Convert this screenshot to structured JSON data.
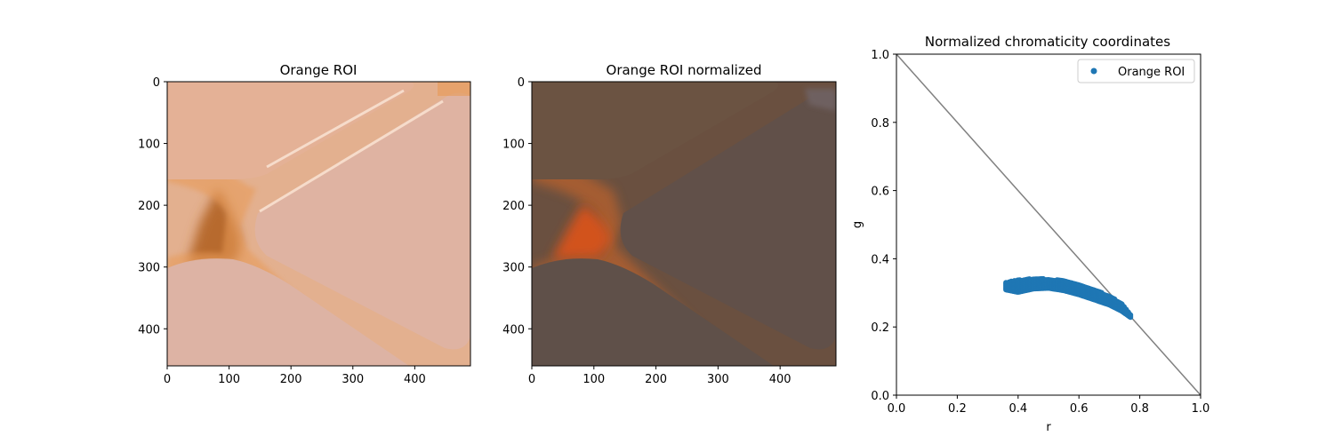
{
  "chart_data": [
    {
      "type": "image",
      "title": "Orange ROI",
      "xlim": [
        0,
        490
      ],
      "ylim": [
        460,
        0
      ],
      "xticks": [
        0,
        100,
        200,
        300,
        400
      ],
      "yticks": [
        0,
        100,
        200,
        300,
        400
      ],
      "tick_labels_x": [
        "0",
        "100",
        "200",
        "300",
        "400"
      ],
      "tick_labels_y": [
        "0",
        "100",
        "200",
        "300",
        "400"
      ],
      "colors": {
        "background": "#e3b08f",
        "upper_key": "#e4b196",
        "lower_right_key": "#dfb3a2",
        "lower_left_key": "#ddb3a4",
        "groove": "#e89a55",
        "groove_shadow": "#b76a2e",
        "highlight": "#f6dccb"
      }
    },
    {
      "type": "image",
      "title": "Orange ROI normalized",
      "xlim": [
        0,
        490
      ],
      "ylim": [
        460,
        0
      ],
      "xticks": [
        0,
        100,
        200,
        300,
        400
      ],
      "yticks": [
        0,
        100,
        200,
        300,
        400
      ],
      "tick_labels_x": [
        "0",
        "100",
        "200",
        "300",
        "400"
      ],
      "tick_labels_y": [
        "0",
        "100",
        "200",
        "300",
        "400"
      ],
      "colors": {
        "background": "#6a5040",
        "upper_key": "#6b5342",
        "lower_right_key": "#615049",
        "lower_left_key": "#5f5049",
        "groove": "#b4612e",
        "groove_shadow": "#d2521b",
        "highlight": "#6e6060"
      }
    },
    {
      "type": "scatter",
      "title": "Normalized chromaticity coordinates",
      "xlabel": "r",
      "ylabel": "g",
      "xlim": [
        0,
        1
      ],
      "ylim": [
        0,
        1
      ],
      "xticks": [
        0,
        0.2,
        0.4,
        0.6,
        0.8,
        1.0
      ],
      "yticks": [
        0,
        0.2,
        0.4,
        0.6,
        0.8,
        1.0
      ],
      "tick_labels_x": [
        "0.0",
        "0.2",
        "0.4",
        "0.6",
        "0.8",
        "1.0"
      ],
      "tick_labels_y": [
        "0.0",
        "0.2",
        "0.4",
        "0.6",
        "0.8",
        "1.0"
      ],
      "grid": false,
      "legend_position": "upper-right",
      "line": {
        "x": [
          0,
          1
        ],
        "y": [
          1,
          0
        ],
        "color": "#808080"
      },
      "series": [
        {
          "name": "Orange ROI",
          "color": "#1f77b4",
          "band_upper": {
            "x": [
              0.36,
              0.4,
              0.45,
              0.5,
              0.55,
              0.6,
              0.65,
              0.7,
              0.74,
              0.77
            ],
            "y": [
              0.331,
              0.338,
              0.342,
              0.341,
              0.336,
              0.326,
              0.31,
              0.291,
              0.27,
              0.235
            ]
          },
          "band_lower": {
            "x": [
              0.36,
              0.4,
              0.45,
              0.5,
              0.55,
              0.6,
              0.65,
              0.7,
              0.74,
              0.77
            ],
            "y": [
              0.309,
              0.302,
              0.312,
              0.314,
              0.307,
              0.295,
              0.28,
              0.265,
              0.247,
              0.228
            ]
          }
        }
      ]
    }
  ]
}
